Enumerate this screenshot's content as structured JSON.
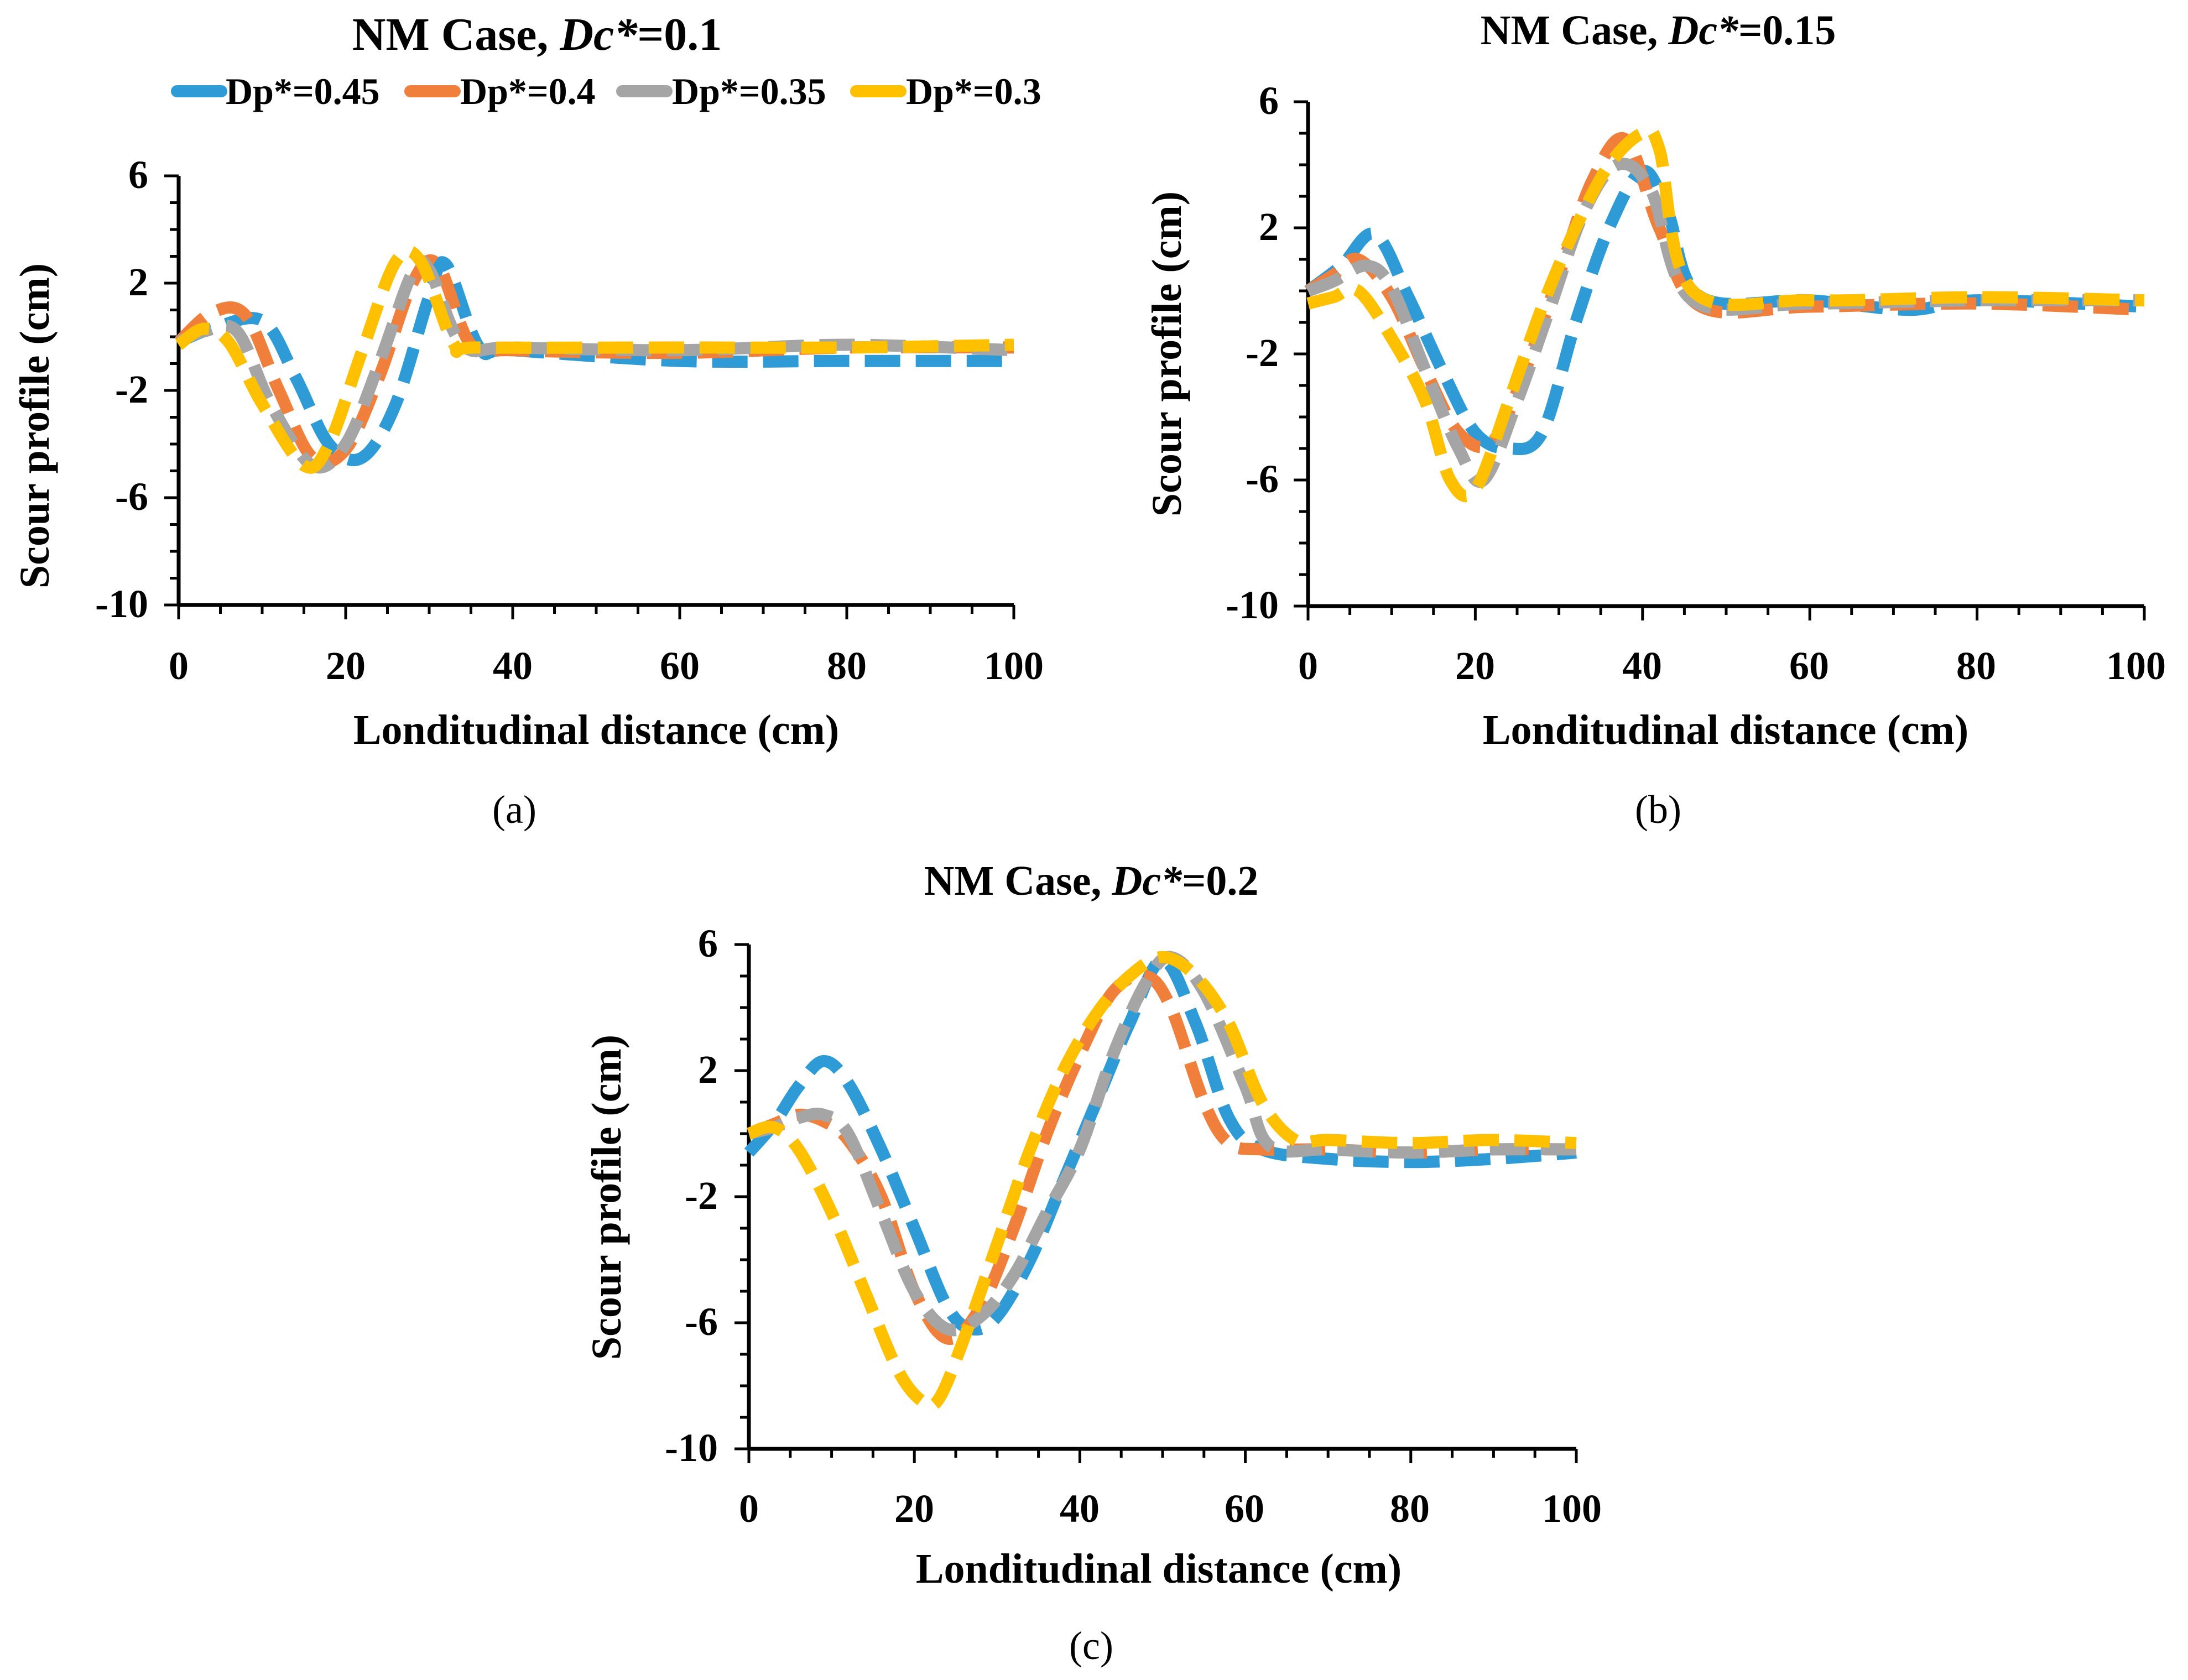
{
  "legend": {
    "entries": [
      {
        "label": "Dp*=0.45",
        "color": "#2E9BD6"
      },
      {
        "label": "Dp*=0.4",
        "color": "#F07F3C"
      },
      {
        "label": "Dp*=0.35",
        "color": "#A5A5A5"
      },
      {
        "label": "Dp*=0.3",
        "color": "#FFC000"
      }
    ]
  },
  "chart_data": [
    {
      "id": "a",
      "type": "line",
      "panel_label": "(a)",
      "title_prefix": "NM Case, ",
      "title_italic": "Dc*",
      "title_suffix": "=0.1",
      "xlabel": "Londitudinal distance (cm)",
      "ylabel": "Scour profile (cm)",
      "xlim": [
        0,
        100
      ],
      "ylim": [
        -10,
        6
      ],
      "xticks": [
        "0",
        "20",
        "40",
        "60",
        "80",
        "100"
      ],
      "yticks": [
        "6",
        "2",
        "-2",
        "-6",
        "-10"
      ],
      "series": [
        {
          "name": "Dp*=0.45",
          "x": [
            0,
            4,
            10,
            14,
            18,
            22,
            26,
            30,
            32,
            36,
            40,
            60,
            80,
            100
          ],
          "y": [
            -0.2,
            0.3,
            0.6,
            -1.5,
            -4.0,
            -4.5,
            -2.5,
            1.5,
            2.7,
            -0.4,
            -0.5,
            -0.9,
            -0.9,
            -0.9
          ]
        },
        {
          "name": "Dp*=0.4",
          "x": [
            0,
            4,
            8,
            12,
            16,
            20,
            24,
            28,
            31,
            35,
            40,
            60,
            80,
            100
          ],
          "y": [
            -0.2,
            0.9,
            0.8,
            -2.0,
            -4.5,
            -4.2,
            -1.5,
            2.0,
            2.7,
            -0.3,
            -0.5,
            -0.6,
            -0.4,
            -0.4
          ]
        },
        {
          "name": "Dp*=0.35",
          "x": [
            0,
            3,
            7,
            11,
            16,
            20,
            24,
            28,
            30,
            34,
            40,
            60,
            80,
            100
          ],
          "y": [
            -0.2,
            0.2,
            0.2,
            -2.5,
            -4.8,
            -4.0,
            -1.0,
            2.4,
            2.5,
            -0.3,
            -0.4,
            -0.5,
            -0.3,
            -0.5
          ]
        },
        {
          "name": "Dp*=0.3",
          "x": [
            0,
            3,
            6,
            10,
            15,
            18,
            22,
            26,
            29,
            33,
            36,
            60,
            80,
            100
          ],
          "y": [
            -0.3,
            0.3,
            -0.2,
            -2.5,
            -4.8,
            -4.0,
            -0.5,
            2.8,
            2.8,
            -0.3,
            -0.4,
            -0.4,
            -0.4,
            -0.3
          ]
        }
      ]
    },
    {
      "id": "b",
      "type": "line",
      "panel_label": "(b)",
      "title_prefix": "NM Case, ",
      "title_italic": "Dc*",
      "title_suffix": "=0.15",
      "xlabel": "Londitudinal distance (cm)",
      "ylabel": "Scour profile (cm)",
      "xlim": [
        0,
        100
      ],
      "ylim": [
        -10,
        6
      ],
      "xticks": [
        "0",
        "20",
        "40",
        "60",
        "80",
        "100"
      ],
      "yticks": [
        "6",
        "2",
        "-2",
        "-6",
        "-10"
      ],
      "series": [
        {
          "name": "Dp*=0.45",
          "x": [
            0,
            4,
            8,
            12,
            16,
            20,
            24,
            28,
            32,
            36,
            40,
            43,
            47,
            60,
            72,
            80,
            100
          ],
          "y": [
            0.0,
            0.8,
            1.8,
            -0.2,
            -2.5,
            -4.5,
            -5.0,
            -4.5,
            -1.0,
            2.0,
            3.8,
            2.5,
            -0.2,
            -0.3,
            -0.6,
            -0.3,
            -0.5
          ]
        },
        {
          "name": "Dp*=0.4",
          "x": [
            0,
            3,
            6,
            10,
            14,
            18,
            22,
            26,
            30,
            34,
            38,
            42,
            47,
            60,
            80,
            100
          ],
          "y": [
            0.0,
            0.5,
            1.0,
            -0.2,
            -2.5,
            -4.5,
            -4.8,
            -2.5,
            0.5,
            3.5,
            4.8,
            2.0,
            -0.5,
            -0.5,
            -0.4,
            -0.6
          ]
        },
        {
          "name": "Dp*=0.35",
          "x": [
            0,
            3,
            7,
            10,
            14,
            18,
            21,
            25,
            29,
            33,
            37,
            41,
            46,
            60,
            80,
            100
          ],
          "y": [
            0.0,
            0.3,
            0.8,
            0.1,
            -2.5,
            -5.0,
            -6.0,
            -3.5,
            -0.5,
            2.5,
            4.0,
            3.2,
            -0.3,
            -0.4,
            -0.3,
            -0.3
          ]
        },
        {
          "name": "Dp*=0.3",
          "x": [
            0,
            3,
            6,
            10,
            14,
            17,
            20,
            24,
            28,
            32,
            36,
            40,
            42,
            46,
            60,
            80,
            100
          ],
          "y": [
            -0.4,
            -0.2,
            0.0,
            -1.5,
            -3.5,
            -6.0,
            -6.3,
            -3.5,
            -0.5,
            2.0,
            4.0,
            5.0,
            4.5,
            0.0,
            -0.3,
            -0.2,
            -0.3
          ]
        }
      ]
    },
    {
      "id": "c",
      "type": "line",
      "panel_label": "(c)",
      "title_prefix": "NM Case, ",
      "title_italic": "Dc*",
      "title_suffix": "=0.2",
      "xlabel": "Londitudinal distance (cm)",
      "ylabel": "Scour profile (cm)",
      "xlim": [
        0,
        100
      ],
      "ylim": [
        -10,
        6
      ],
      "xticks": [
        "0",
        "20",
        "40",
        "60",
        "80",
        "100"
      ],
      "yticks": [
        "6",
        "2",
        "-2",
        "-6",
        "-10"
      ],
      "series": [
        {
          "name": "Dp*=0.45",
          "x": [
            0,
            3,
            6,
            9,
            12,
            16,
            20,
            24,
            27,
            30,
            34,
            38,
            42,
            46,
            50,
            54,
            58,
            62,
            70,
            80,
            90,
            100
          ],
          "y": [
            -0.6,
            0.3,
            1.5,
            2.3,
            1.6,
            -0.5,
            -3.0,
            -5.5,
            -6.2,
            -5.8,
            -4.0,
            -1.5,
            1.0,
            3.5,
            5.5,
            3.5,
            0.5,
            -0.5,
            -0.8,
            -0.9,
            -0.8,
            -0.6
          ]
        },
        {
          "name": "Dp*=0.4",
          "x": [
            0,
            3,
            6,
            9,
            12,
            16,
            20,
            24,
            28,
            32,
            36,
            40,
            44,
            48,
            51,
            55,
            58,
            62,
            70,
            80,
            90,
            100
          ],
          "y": [
            0.0,
            0.3,
            0.6,
            0.4,
            -0.2,
            -2.0,
            -5.0,
            -6.5,
            -5.5,
            -3.0,
            0.0,
            2.5,
            4.5,
            5.0,
            4.0,
            1.0,
            -0.3,
            -0.5,
            -0.5,
            -0.6,
            -0.5,
            -0.5
          ]
        },
        {
          "name": "Dp*=0.35",
          "x": [
            0,
            3,
            6,
            9,
            12,
            16,
            20,
            24,
            28,
            32,
            36,
            40,
            44,
            48,
            51,
            55,
            60,
            63,
            70,
            80,
            90,
            100
          ],
          "y": [
            0.0,
            0.2,
            0.5,
            0.6,
            0.0,
            -2.5,
            -5.0,
            -6.2,
            -5.8,
            -4.5,
            -2.5,
            -0.5,
            2.5,
            4.8,
            5.6,
            4.5,
            1.5,
            -0.4,
            -0.5,
            -0.6,
            -0.5,
            -0.5
          ]
        },
        {
          "name": "Dp*=0.3",
          "x": [
            0,
            3,
            6,
            10,
            14,
            18,
            21,
            23,
            26,
            30,
            34,
            38,
            42,
            46,
            50,
            54,
            58,
            62,
            66,
            70,
            80,
            90,
            100
          ],
          "y": [
            0.0,
            0.2,
            -0.5,
            -2.5,
            -5.0,
            -7.5,
            -8.5,
            -8.4,
            -6.5,
            -3.5,
            -0.5,
            2.0,
            3.8,
            5.0,
            5.6,
            5.0,
            3.5,
            1.0,
            -0.2,
            -0.2,
            -0.3,
            -0.2,
            -0.3
          ]
        }
      ]
    }
  ]
}
